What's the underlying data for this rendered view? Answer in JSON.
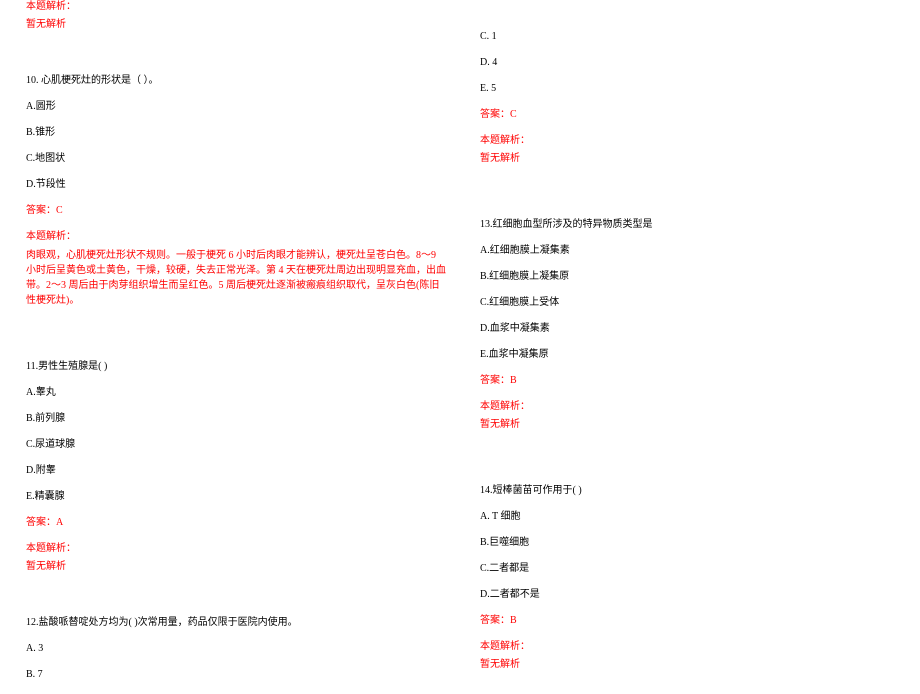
{
  "left": {
    "analysis_label_top": "本题解析：",
    "no_analysis_top": "暂无解析",
    "q10": {
      "stem": "10. 心肌梗死灶的形状是（ ）。",
      "a": "A.圆形",
      "b": "B.锥形",
      "c": "C.地图状",
      "d": "D.节段性",
      "answer": "答案：C",
      "analysis_label": "本题解析：",
      "explanation": "肉眼观，心肌梗死灶形状不规则。一般于梗死 6 小时后肉眼才能辨认，梗死灶呈苍白色。8～9 小时后呈黄色或土黄色，干燥，较硬，失去正常光泽。第 4 天在梗死灶周边出现明显充血，出血带。2～3 周后由于肉芽组织增生而呈红色。5 周后梗死灶逐渐被瘢痕组织取代，呈灰白色(陈旧性梗死灶)。"
    },
    "q11": {
      "stem": "11.男性生殖腺是(   )",
      "a": "A.睾丸",
      "b": "B.前列腺",
      "c": "C.尿道球腺",
      "d": "D.附睾",
      "e": "E.精囊腺",
      "answer": "答案：A",
      "analysis_label": "本题解析：",
      "no_analysis": "暂无解析"
    },
    "q12": {
      "stem": "12.盐酸哌替啶处方均为(   )次常用量，药品仅限于医院内使用。",
      "a": "A. 3",
      "b": "B. 7"
    }
  },
  "right": {
    "q12_cont": {
      "c": "C. 1",
      "d": "D. 4",
      "e": "E. 5",
      "answer": "答案：C",
      "analysis_label": "本题解析：",
      "no_analysis": "暂无解析"
    },
    "q13": {
      "stem": "13.红细胞血型所涉及的特异物质类型是",
      "a": "A.红细胞膜上凝集素",
      "b": "B.红细胞膜上凝集原",
      "c": "C.红细胞膜上受体",
      "d": "D.血浆中凝集素",
      "e": "E.血浆中凝集原",
      "answer": "答案：B",
      "analysis_label": "本题解析：",
      "no_analysis": "暂无解析"
    },
    "q14": {
      "stem": "14.短棒菌苗可作用于(   )",
      "a": "A. T 细胞",
      "b": "B.巨噬细胞",
      "c": "C.二者都是",
      "d": "D.二者都不是",
      "answer": "答案：B",
      "analysis_label": "本题解析：",
      "no_analysis": "暂无解析"
    }
  }
}
